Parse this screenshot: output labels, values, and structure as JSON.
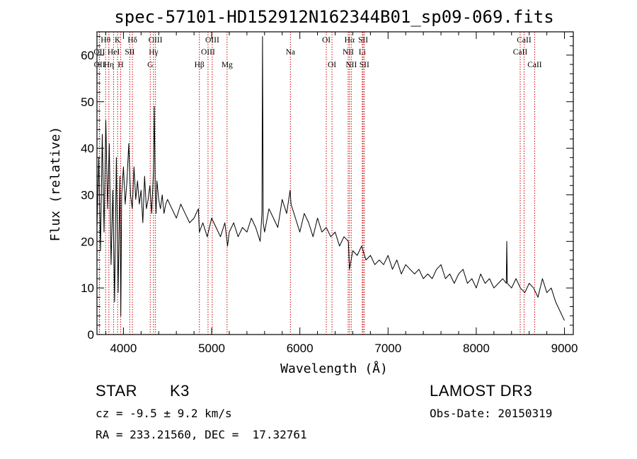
{
  "chart_data": {
    "type": "line",
    "title": "spec-57101-HD152912N162344B01_sp09-069.fits",
    "xlabel": "Wavelength (Å)",
    "ylabel": "Flux (relative)",
    "xlim": [
      3700,
      9100
    ],
    "ylim": [
      0,
      65
    ],
    "xticks": [
      4000,
      5000,
      6000,
      7000,
      8000,
      9000
    ],
    "yticks": [
      0,
      10,
      20,
      30,
      40,
      50,
      60
    ],
    "series": [
      {
        "name": "spectrum",
        "x": [
          3700,
          3720,
          3740,
          3760,
          3780,
          3800,
          3820,
          3840,
          3860,
          3880,
          3900,
          3920,
          3940,
          3960,
          3970,
          3980,
          4000,
          4020,
          4040,
          4060,
          4080,
          4100,
          4120,
          4140,
          4160,
          4180,
          4200,
          4220,
          4240,
          4260,
          4280,
          4300,
          4320,
          4340,
          4350,
          4360,
          4370,
          4380,
          4400,
          4420,
          4440,
          4460,
          4480,
          4500,
          4550,
          4600,
          4650,
          4700,
          4750,
          4800,
          4850,
          4861,
          4900,
          4950,
          5000,
          5050,
          5100,
          5150,
          5180,
          5200,
          5250,
          5300,
          5350,
          5400,
          5450,
          5500,
          5550,
          5570,
          5577,
          5585,
          5600,
          5650,
          5700,
          5750,
          5800,
          5850,
          5890,
          5900,
          5950,
          6000,
          6050,
          6100,
          6150,
          6200,
          6250,
          6300,
          6350,
          6400,
          6450,
          6500,
          6550,
          6563,
          6600,
          6650,
          6700,
          6750,
          6800,
          6850,
          6900,
          6950,
          7000,
          7050,
          7100,
          7150,
          7200,
          7250,
          7300,
          7350,
          7400,
          7450,
          7500,
          7550,
          7600,
          7650,
          7700,
          7750,
          7800,
          7850,
          7900,
          7950,
          8000,
          8050,
          8100,
          8150,
          8200,
          8250,
          8300,
          8340,
          8346,
          8352,
          8400,
          8450,
          8500,
          8550,
          8600,
          8650,
          8700,
          8750,
          8800,
          8850,
          8900,
          8950,
          9000
        ],
        "y": [
          23,
          38,
          18,
          43,
          22,
          46,
          27,
          41,
          15,
          31,
          7,
          38,
          9,
          34,
          4,
          30,
          36,
          28,
          33,
          41,
          30,
          27,
          36,
          29,
          33,
          28,
          31,
          24,
          34,
          27,
          29,
          32,
          26,
          35,
          49,
          31,
          26,
          33,
          29,
          27,
          30,
          26,
          28,
          29,
          27,
          25,
          28,
          26,
          24,
          25,
          27,
          22,
          24,
          21,
          25,
          23,
          21,
          24,
          19,
          22,
          24,
          21,
          23,
          22,
          25,
          23,
          20,
          26,
          64,
          24,
          22,
          27,
          25,
          23,
          29,
          26,
          31,
          28,
          25,
          22,
          26,
          24,
          21,
          25,
          22,
          23,
          21,
          22,
          19,
          21,
          20,
          14,
          18,
          17,
          19,
          16,
          17,
          15,
          16,
          15,
          17,
          14,
          16,
          13,
          15,
          14,
          13,
          14,
          12,
          13,
          12,
          14,
          15,
          12,
          13,
          11,
          13,
          14,
          11,
          12,
          10,
          13,
          11,
          12,
          10,
          11,
          12,
          11,
          20,
          11,
          10,
          12,
          10,
          9,
          11,
          10,
          8,
          12,
          9,
          10,
          7,
          5,
          3
        ]
      }
    ],
    "lines": [
      {
        "label": "Hθ",
        "wl": 3798,
        "row": 0
      },
      {
        "label": "OII",
        "wl": 3727,
        "row": 1
      },
      {
        "label": "OII",
        "wl": 3729,
        "row": 2
      },
      {
        "label": "Hη",
        "wl": 3835,
        "row": 2
      },
      {
        "label": "K",
        "wl": 3934,
        "row": 0
      },
      {
        "label": "HeI",
        "wl": 3889,
        "row": 1
      },
      {
        "label": "H",
        "wl": 3969,
        "row": 2
      },
      {
        "label": "Hδ",
        "wl": 4102,
        "row": 0
      },
      {
        "label": "SII",
        "wl": 4072,
        "row": 1
      },
      {
        "label": "OIII",
        "wl": 4363,
        "row": 0
      },
      {
        "label": "Hγ",
        "wl": 4341,
        "row": 1
      },
      {
        "label": "G",
        "wl": 4304,
        "row": 2
      },
      {
        "label": "OIII",
        "wl": 5007,
        "row": 0
      },
      {
        "label": "OIII",
        "wl": 4959,
        "row": 1
      },
      {
        "label": "Hβ",
        "wl": 4861,
        "row": 2
      },
      {
        "label": "Mg",
        "wl": 5175,
        "row": 2
      },
      {
        "label": "Na",
        "wl": 5893,
        "row": 1
      },
      {
        "label": "OI",
        "wl": 6300,
        "row": 0
      },
      {
        "label": "OI",
        "wl": 6364,
        "row": 2
      },
      {
        "label": "Hα",
        "wl": 6563,
        "row": 0
      },
      {
        "label": "NII",
        "wl": 6548,
        "row": 1
      },
      {
        "label": "NII",
        "wl": 6583,
        "row": 2
      },
      {
        "label": "SII",
        "wl": 6717,
        "row": 0
      },
      {
        "label": "Li",
        "wl": 6708,
        "row": 1
      },
      {
        "label": "SII",
        "wl": 6731,
        "row": 2
      },
      {
        "label": "CaII",
        "wl": 8542,
        "row": 0
      },
      {
        "label": "CaII",
        "wl": 8498,
        "row": 1
      },
      {
        "label": "CaII",
        "wl": 8662,
        "row": 2
      }
    ],
    "line_color": "#cc0000",
    "data_color": "#000000"
  },
  "info": {
    "class_label": "STAR",
    "subclass": "K3",
    "survey": "LAMOST DR3",
    "cz": "cz = -9.5 ± 9.2 km/s",
    "obs_date": "Obs-Date: 20150319",
    "coords": "RA = 233.21560, DEC =  17.32761"
  }
}
